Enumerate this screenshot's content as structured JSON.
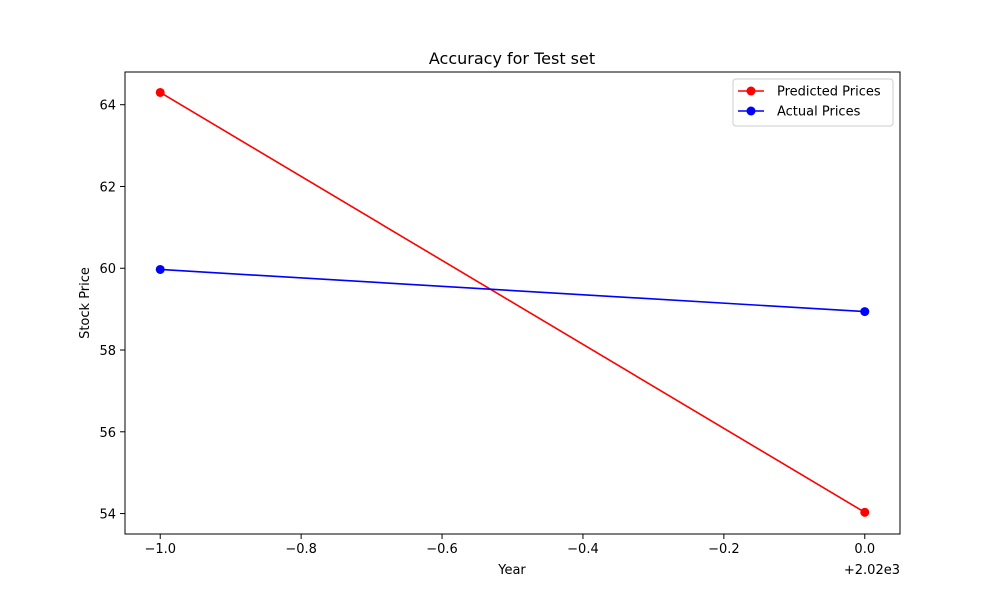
{
  "chart_data": {
    "type": "line",
    "title": "Accuracy for Test set",
    "xlabel": "Year",
    "ylabel": "Stock Price",
    "x_offset_label": "+2.02e3",
    "xlim": [
      -1.05,
      0.05
    ],
    "ylim": [
      53.5,
      64.8
    ],
    "x_ticks": [
      -1.0,
      -0.8,
      -0.6,
      -0.4,
      -0.2,
      0.0
    ],
    "x_tick_labels": [
      "−1.0",
      "−0.8",
      "−0.6",
      "−0.4",
      "−0.2",
      "0.0"
    ],
    "y_ticks": [
      54,
      56,
      58,
      60,
      62,
      64
    ],
    "y_tick_labels": [
      "54",
      "56",
      "58",
      "60",
      "62",
      "64"
    ],
    "grid": false,
    "legend_position": "top-right",
    "series": [
      {
        "name": "Predicted Prices",
        "color": "#ff0000",
        "marker": "circle",
        "x": [
          -1.0,
          0.0
        ],
        "y": [
          64.3,
          54.03
        ]
      },
      {
        "name": "Actual Prices",
        "color": "#0000ff",
        "marker": "circle",
        "x": [
          -1.0,
          0.0
        ],
        "y": [
          59.97,
          58.94
        ]
      }
    ]
  }
}
